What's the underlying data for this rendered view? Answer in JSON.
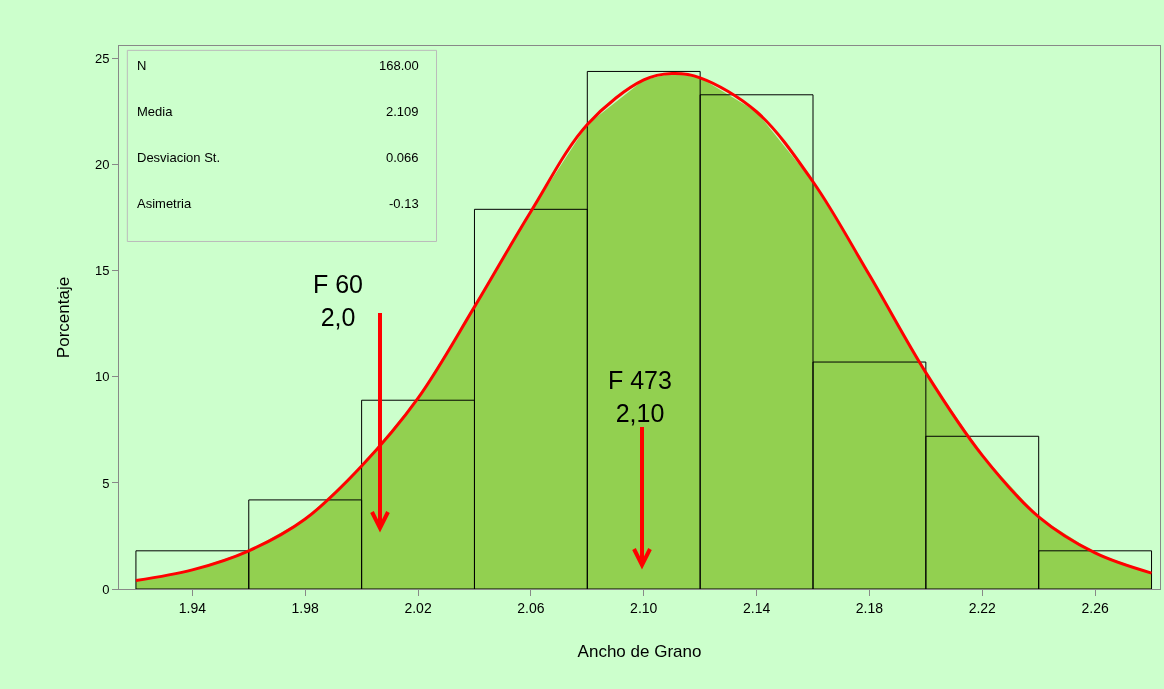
{
  "chart_data": {
    "type": "histogram",
    "xlabel": "Ancho de Grano",
    "ylabel": "Porcentaje",
    "bins": [
      1.92,
      1.96,
      2.0,
      2.04,
      2.08,
      2.12,
      2.16,
      2.2,
      2.24,
      2.28
    ],
    "values": [
      1.8,
      4.2,
      8.9,
      17.9,
      24.4,
      23.3,
      10.7,
      7.2,
      1.8
    ],
    "color": "#000000",
    "series": [
      {
        "type": "area",
        "color": "#92d050",
        "x": [
          1.92,
          1.94,
          1.96,
          1.98,
          2.0,
          2.02,
          2.04,
          2.06,
          2.08,
          2.1,
          2.11,
          2.12,
          2.14,
          2.16,
          2.18,
          2.2,
          2.22,
          2.24,
          2.26,
          2.28
        ],
        "values": [
          0.4,
          0.9,
          1.8,
          3.3,
          5.8,
          9.0,
          13.3,
          17.8,
          21.9,
          24.0,
          24.3,
          24.1,
          22.5,
          19.2,
          14.8,
          10.2,
          6.3,
          3.4,
          1.7,
          0.75
        ]
      },
      {
        "type": "line",
        "color": "#ff0000",
        "x": [
          1.92,
          1.94,
          1.96,
          1.98,
          2.0,
          2.02,
          2.04,
          2.06,
          2.08,
          2.1,
          2.11,
          2.12,
          2.14,
          2.16,
          2.18,
          2.2,
          2.22,
          2.24,
          2.26,
          2.28
        ],
        "values": [
          0.4,
          0.9,
          1.8,
          3.3,
          5.8,
          9.0,
          13.3,
          17.8,
          21.9,
          24.0,
          24.3,
          24.1,
          22.5,
          19.2,
          14.8,
          10.2,
          6.3,
          3.4,
          1.7,
          0.75
        ]
      }
    ],
    "xlim": [
      1.914,
      2.283
    ],
    "ylim": [
      0,
      25.6
    ],
    "xticks": [
      1.94,
      1.98,
      2.02,
      2.06,
      {
        "value": 2.1,
        "label": "2.10"
      },
      2.14,
      2.18,
      2.22,
      2.26
    ],
    "yticks": [
      0,
      5,
      10,
      15,
      20,
      25
    ],
    "grid": false,
    "annotations": [
      "N",
      "168.00",
      "Media",
      "2.109",
      "Desviacion St.",
      "0.066",
      "Asimetria",
      "-0.13",
      "F 60\n2,0",
      "F 473\n2,10"
    ]
  }
}
